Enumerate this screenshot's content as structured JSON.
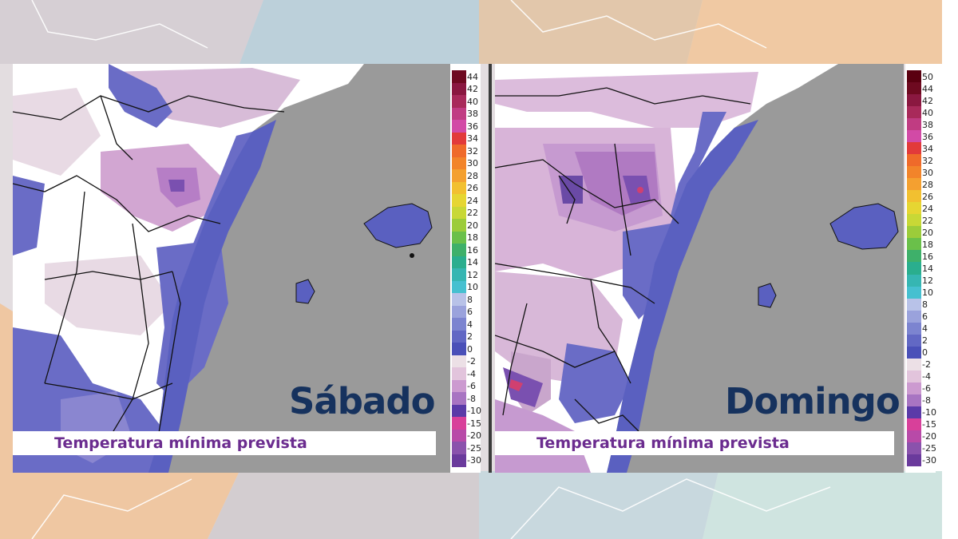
{
  "panels": [
    {
      "id": "saturday",
      "day_label": "Sábado",
      "caption": "Temperatura mínima prevista",
      "legend_ticks": [
        "44",
        "42",
        "40",
        "38",
        "36",
        "34",
        "32",
        "30",
        "28",
        "26",
        "24",
        "22",
        "20",
        "18",
        "16",
        "14",
        "12",
        "10",
        "8",
        "6",
        "4",
        "2",
        "0",
        "-2",
        "-4",
        "-6",
        "-8",
        "-10",
        "-15",
        "-20",
        "-25",
        "-30"
      ]
    },
    {
      "id": "sunday",
      "day_label": "Domingo",
      "caption": "Temperatura mínima prevista",
      "legend_ticks": [
        "50",
        "44",
        "42",
        "40",
        "38",
        "36",
        "34",
        "32",
        "30",
        "28",
        "26",
        "24",
        "22",
        "20",
        "18",
        "16",
        "14",
        "12",
        "10",
        "8",
        "6",
        "4",
        "2",
        "0",
        "-2",
        "-4",
        "-6",
        "-8",
        "-10",
        "-15",
        "-20",
        "-25",
        "-30"
      ]
    }
  ],
  "legend_colors": {
    "hot": "#7a0a1a",
    "warm": "#e84a2a",
    "mild": "#f0c030",
    "cool": "#3cc0c0",
    "zero": "#5a60c0",
    "cold": "#e8d8e0",
    "frost": "#7a50b0"
  }
}
